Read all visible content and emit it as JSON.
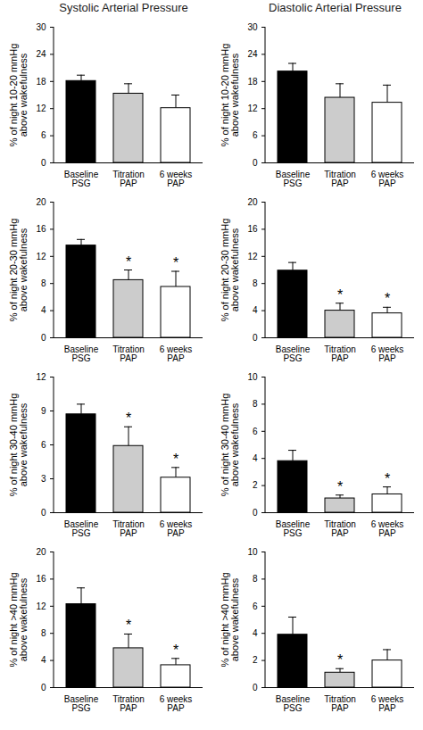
{
  "chart_data": [
    {
      "type": "bar",
      "title": "Systolic Arterial Pressure",
      "ylabel": "% of night 10-20 mmHg\nabove wakefulness",
      "categories": [
        "Baseline\nPSG",
        "Titration\nPAP",
        "6 weeks\nPAP"
      ],
      "values": [
        18.1,
        15.3,
        12.1
      ],
      "errors": [
        1.3,
        2.2,
        2.9
      ],
      "annotations": [
        null,
        null,
        null
      ],
      "colors": [
        "#000000",
        "#cccccc",
        "#ffffff"
      ],
      "ylim": [
        0,
        30
      ],
      "yticks": [
        0,
        6,
        12,
        18,
        24,
        30
      ]
    },
    {
      "type": "bar",
      "title": "Diastolic Arterial Pressure",
      "ylabel": "% of night 10-20 mmHg\nabove wakefulness",
      "categories": [
        "Baseline\nPSG",
        "Titration\nPAP",
        "6 weeks\nPAP"
      ],
      "values": [
        20.2,
        14.4,
        13.3
      ],
      "errors": [
        1.8,
        3.1,
        3.9
      ],
      "annotations": [
        null,
        null,
        null
      ],
      "colors": [
        "#000000",
        "#cccccc",
        "#ffffff"
      ],
      "ylim": [
        0,
        30
      ],
      "yticks": [
        0,
        6,
        12,
        18,
        24,
        30
      ]
    },
    {
      "type": "bar",
      "ylabel": "% of night 20-30 mmHg\nabove wakefulness",
      "categories": [
        "Baseline\nPSG",
        "Titration\nPAP",
        "6 weeks\nPAP"
      ],
      "values": [
        13.6,
        8.5,
        7.5
      ],
      "errors": [
        0.9,
        1.5,
        2.3
      ],
      "annotations": [
        null,
        "*",
        "*"
      ],
      "colors": [
        "#000000",
        "#cccccc",
        "#ffffff"
      ],
      "ylim": [
        0,
        20
      ],
      "yticks": [
        0,
        4,
        8,
        12,
        16,
        20
      ]
    },
    {
      "type": "bar",
      "ylabel": "% of night 20-30 mmHg\nabove wakefulness",
      "categories": [
        "Baseline\nPSG",
        "Titration\nPAP",
        "6 weeks\nPAP"
      ],
      "values": [
        9.9,
        4.0,
        3.6
      ],
      "errors": [
        1.2,
        1.1,
        0.9
      ],
      "annotations": [
        null,
        "*",
        "*"
      ],
      "colors": [
        "#000000",
        "#cccccc",
        "#ffffff"
      ],
      "ylim": [
        0,
        20
      ],
      "yticks": [
        0,
        4,
        8,
        12,
        16,
        20
      ]
    },
    {
      "type": "bar",
      "ylabel": "% of night 30-40 mmHg\nabove wakefulness",
      "categories": [
        "Baseline\nPSG",
        "Titration\nPAP",
        "6 weeks\nPAP"
      ],
      "values": [
        8.7,
        5.9,
        3.1
      ],
      "errors": [
        0.9,
        1.7,
        0.9
      ],
      "annotations": [
        null,
        "*",
        "*"
      ],
      "colors": [
        "#000000",
        "#cccccc",
        "#ffffff"
      ],
      "ylim": [
        0,
        12
      ],
      "yticks": [
        0,
        3,
        6,
        9,
        12
      ]
    },
    {
      "type": "bar",
      "ylabel": "% of night 30-40 mmHg\nabove wakefulness",
      "categories": [
        "Baseline\nPSG",
        "Titration\nPAP",
        "6 weeks\nPAP"
      ],
      "values": [
        3.8,
        1.05,
        1.35
      ],
      "errors": [
        0.8,
        0.25,
        0.55
      ],
      "annotations": [
        null,
        "*",
        "*"
      ],
      "colors": [
        "#000000",
        "#cccccc",
        "#ffffff"
      ],
      "ylim": [
        0,
        10
      ],
      "yticks": [
        0,
        2,
        4,
        6,
        8,
        10
      ]
    },
    {
      "type": "bar",
      "ylabel": "% of night >40 mmHg\nabove wakefulness",
      "categories": [
        "Baseline\nPSG",
        "Titration\nPAP",
        "6 weeks\nPAP"
      ],
      "values": [
        12.3,
        5.8,
        3.3
      ],
      "errors": [
        2.4,
        2.1,
        1.0
      ],
      "annotations": [
        null,
        "*",
        "*"
      ],
      "colors": [
        "#000000",
        "#cccccc",
        "#ffffff"
      ],
      "ylim": [
        0,
        20
      ],
      "yticks": [
        0,
        4,
        8,
        12,
        16,
        20
      ]
    },
    {
      "type": "bar",
      "ylabel": "% of night >40 mmHg\nabove wakefulness",
      "categories": [
        "Baseline\nPSG",
        "Titration\nPAP",
        "6 weeks\nPAP"
      ],
      "values": [
        3.9,
        1.1,
        2.0
      ],
      "errors": [
        1.3,
        0.3,
        0.8
      ],
      "annotations": [
        null,
        "*",
        null
      ],
      "colors": [
        "#000000",
        "#cccccc",
        "#ffffff"
      ],
      "ylim": [
        0,
        10
      ],
      "yticks": [
        0,
        2,
        4,
        6,
        8,
        10
      ]
    }
  ]
}
